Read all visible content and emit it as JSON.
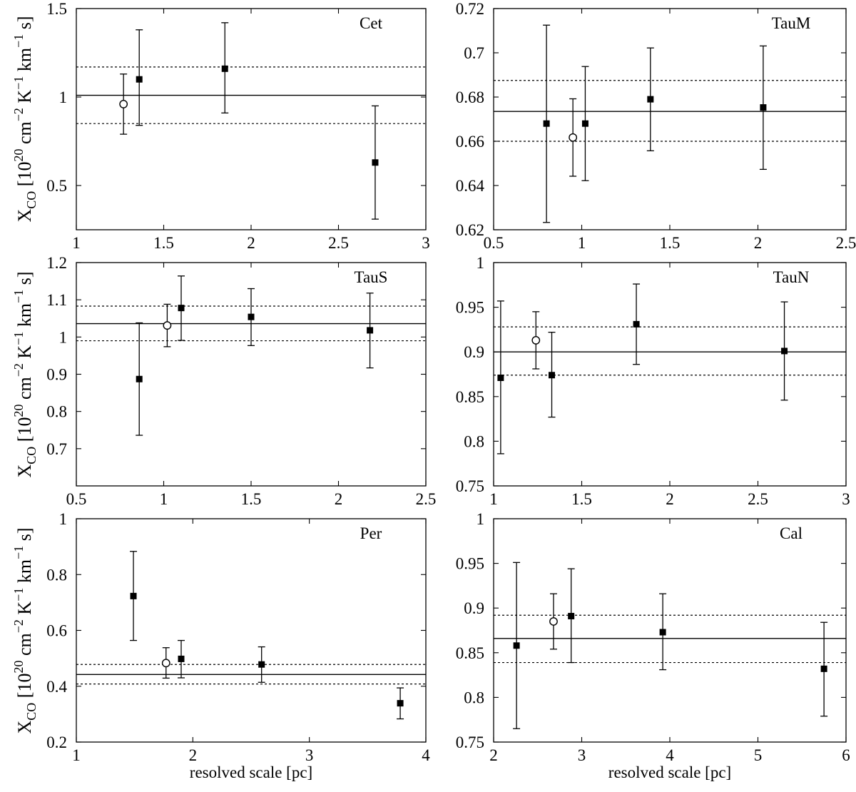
{
  "figure": {
    "xlabel": "resolved scale [pc]",
    "ylabel": {
      "main": "X",
      "sub": "CO",
      "open_bracket": " [10",
      "exp20": "20",
      "cm": " cm",
      "exp_m2": "−2",
      "K": " K",
      "exp_m1a": "−1",
      "km": " km",
      "exp_m1b": "−1",
      "s": " s]"
    }
  },
  "chart_data": [
    {
      "type": "scatter",
      "name": "Cet",
      "xlim": [
        1,
        3
      ],
      "ylim": [
        0.25,
        1.5
      ],
      "xticks": [
        1,
        1.5,
        2,
        2.5,
        3
      ],
      "xtick_labels": [
        "1",
        "1.5",
        "2",
        "2.5",
        "3"
      ],
      "yticks": [
        0.5,
        1,
        1.5
      ],
      "ytick_labels": [
        "0.5",
        "1",
        "1.5"
      ],
      "mean": 1.01,
      "band": [
        0.85,
        1.17
      ],
      "points": [
        {
          "x": 1.27,
          "y": 0.96,
          "lo": 0.79,
          "hi": 1.13,
          "marker": "open-circle"
        },
        {
          "x": 1.36,
          "y": 1.1,
          "lo": 0.84,
          "hi": 1.38,
          "marker": "filled-square"
        },
        {
          "x": 1.85,
          "y": 1.16,
          "lo": 0.91,
          "hi": 1.42,
          "marker": "filled-square"
        },
        {
          "x": 2.71,
          "y": 0.63,
          "lo": 0.31,
          "hi": 0.95,
          "marker": "filled-square"
        }
      ],
      "show_xlabel": false
    },
    {
      "type": "scatter",
      "name": "TauM",
      "xlim": [
        0.5,
        2.5
      ],
      "ylim": [
        0.62,
        0.72
      ],
      "xticks": [
        0.5,
        1,
        1.5,
        2,
        2.5
      ],
      "xtick_labels": [
        "0.5",
        "1",
        "1.5",
        "2",
        "2.5"
      ],
      "yticks": [
        0.62,
        0.64,
        0.66,
        0.68,
        0.7,
        0.72
      ],
      "ytick_labels": [
        "0.62",
        "0.64",
        "0.66",
        "0.68",
        "0.7",
        "0.72"
      ],
      "mean": 0.6735,
      "band": [
        0.66,
        0.6875
      ],
      "points": [
        {
          "x": 0.8,
          "y": 0.668,
          "lo": 0.6233,
          "hi": 0.7125,
          "marker": "filled-square"
        },
        {
          "x": 0.95,
          "y": 0.6617,
          "lo": 0.6442,
          "hi": 0.6792,
          "marker": "open-circle"
        },
        {
          "x": 1.02,
          "y": 0.668,
          "lo": 0.6422,
          "hi": 0.6938,
          "marker": "filled-square"
        },
        {
          "x": 1.39,
          "y": 0.679,
          "lo": 0.6557,
          "hi": 0.7022,
          "marker": "filled-square"
        },
        {
          "x": 2.03,
          "y": 0.6753,
          "lo": 0.6473,
          "hi": 0.7031,
          "marker": "filled-square"
        }
      ],
      "show_xlabel": false
    },
    {
      "type": "scatter",
      "name": "TauS",
      "xlim": [
        0.5,
        2.5
      ],
      "ylim": [
        0.6,
        1.2
      ],
      "xticks": [
        0.5,
        1,
        1.5,
        2,
        2.5
      ],
      "xtick_labels": [
        "0.5",
        "1",
        "1.5",
        "2",
        "2.5"
      ],
      "yticks": [
        0.7,
        0.8,
        0.9,
        1,
        1.1,
        1.2
      ],
      "ytick_labels": [
        "0.7",
        "0.8",
        "0.9",
        "1",
        "1.1",
        "1.2"
      ],
      "mean": 1.036,
      "band": [
        0.99,
        1.083
      ],
      "points": [
        {
          "x": 0.86,
          "y": 0.887,
          "lo": 0.736,
          "hi": 1.038,
          "marker": "filled-square"
        },
        {
          "x": 1.02,
          "y": 1.031,
          "lo": 0.974,
          "hi": 1.088,
          "marker": "open-circle"
        },
        {
          "x": 1.1,
          "y": 1.078,
          "lo": 0.991,
          "hi": 1.164,
          "marker": "filled-square"
        },
        {
          "x": 1.5,
          "y": 1.054,
          "lo": 0.977,
          "hi": 1.13,
          "marker": "filled-square"
        },
        {
          "x": 2.18,
          "y": 1.018,
          "lo": 0.917,
          "hi": 1.118,
          "marker": "filled-square"
        }
      ],
      "show_xlabel": false
    },
    {
      "type": "scatter",
      "name": "TauN",
      "xlim": [
        1,
        3
      ],
      "ylim": [
        0.75,
        1
      ],
      "xticks": [
        1,
        1.5,
        2,
        2.5,
        3
      ],
      "xtick_labels": [
        "1",
        "1.5",
        "2",
        "2.5",
        "3"
      ],
      "yticks": [
        0.75,
        0.8,
        0.85,
        0.9,
        0.95,
        1
      ],
      "ytick_labels": [
        "0.75",
        "0.8",
        "0.85",
        "0.9",
        "0.95",
        "1"
      ],
      "mean": 0.9,
      "band": [
        0.874,
        0.928
      ],
      "points": [
        {
          "x": 1.04,
          "y": 0.871,
          "lo": 0.786,
          "hi": 0.957,
          "marker": "filled-square"
        },
        {
          "x": 1.24,
          "y": 0.913,
          "lo": 0.881,
          "hi": 0.945,
          "marker": "open-circle"
        },
        {
          "x": 1.33,
          "y": 0.874,
          "lo": 0.827,
          "hi": 0.922,
          "marker": "filled-square"
        },
        {
          "x": 1.81,
          "y": 0.931,
          "lo": 0.886,
          "hi": 0.976,
          "marker": "filled-square"
        },
        {
          "x": 2.65,
          "y": 0.901,
          "lo": 0.846,
          "hi": 0.956,
          "marker": "filled-square"
        }
      ],
      "show_xlabel": false
    },
    {
      "type": "scatter",
      "name": "Per",
      "xlim": [
        1,
        4
      ],
      "ylim": [
        0.2,
        1
      ],
      "xticks": [
        1,
        2,
        3,
        4
      ],
      "xtick_labels": [
        "1",
        "2",
        "3",
        "4"
      ],
      "yticks": [
        0.2,
        0.4,
        0.6,
        0.8,
        1
      ],
      "ytick_labels": [
        "0.2",
        "0.4",
        "0.6",
        "0.8",
        "1"
      ],
      "mean": 0.442,
      "band": [
        0.408,
        0.478
      ],
      "points": [
        {
          "x": 1.49,
          "y": 0.723,
          "lo": 0.564,
          "hi": 0.883,
          "marker": "filled-square"
        },
        {
          "x": 1.77,
          "y": 0.483,
          "lo": 0.429,
          "hi": 0.538,
          "marker": "open-circle"
        },
        {
          "x": 1.9,
          "y": 0.498,
          "lo": 0.43,
          "hi": 0.564,
          "marker": "filled-square"
        },
        {
          "x": 2.59,
          "y": 0.478,
          "lo": 0.414,
          "hi": 0.541,
          "marker": "filled-square"
        },
        {
          "x": 3.78,
          "y": 0.339,
          "lo": 0.283,
          "hi": 0.394,
          "marker": "filled-square"
        }
      ],
      "show_xlabel": true
    },
    {
      "type": "scatter",
      "name": "Cal",
      "xlim": [
        2,
        6
      ],
      "ylim": [
        0.75,
        1
      ],
      "xticks": [
        2,
        3,
        4,
        5,
        6
      ],
      "xtick_labels": [
        "2",
        "3",
        "4",
        "5",
        "6"
      ],
      "yticks": [
        0.75,
        0.8,
        0.85,
        0.9,
        0.95,
        1
      ],
      "ytick_labels": [
        "0.75",
        "0.8",
        "0.85",
        "0.9",
        "0.95",
        "1"
      ],
      "mean": 0.866,
      "band": [
        0.839,
        0.892
      ],
      "points": [
        {
          "x": 2.26,
          "y": 0.858,
          "lo": 0.765,
          "hi": 0.951,
          "marker": "filled-square"
        },
        {
          "x": 2.68,
          "y": 0.885,
          "lo": 0.854,
          "hi": 0.916,
          "marker": "open-circle"
        },
        {
          "x": 2.88,
          "y": 0.891,
          "lo": 0.839,
          "hi": 0.944,
          "marker": "filled-square"
        },
        {
          "x": 3.92,
          "y": 0.873,
          "lo": 0.831,
          "hi": 0.916,
          "marker": "filled-square"
        },
        {
          "x": 5.75,
          "y": 0.832,
          "lo": 0.779,
          "hi": 0.884,
          "marker": "filled-square"
        }
      ],
      "show_xlabel": true
    }
  ]
}
